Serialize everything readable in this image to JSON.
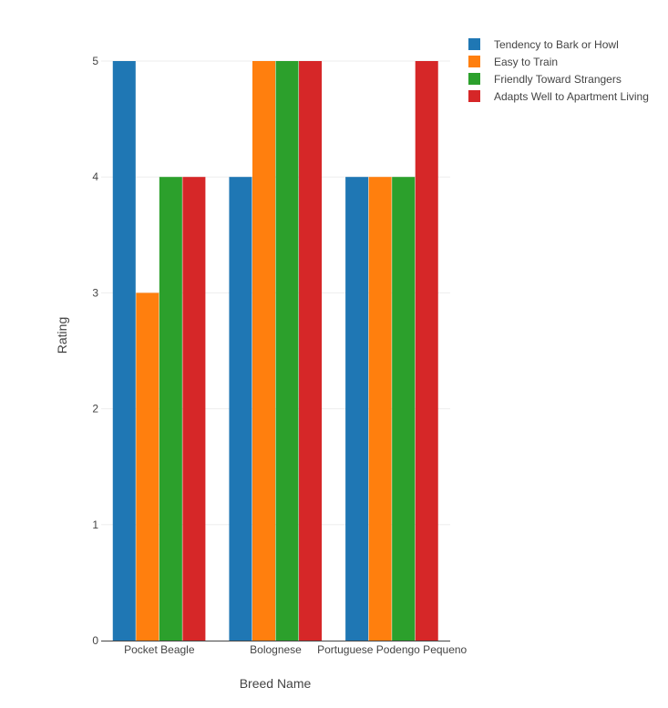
{
  "chart_data": {
    "type": "bar",
    "title": "",
    "xlabel": "Breed Name",
    "ylabel": "Rating",
    "ylim": [
      0,
      5
    ],
    "yticks": [
      0,
      1,
      2,
      3,
      4,
      5
    ],
    "categories": [
      "Pocket Beagle",
      "Bolognese",
      "Portuguese Podengo Pequeno"
    ],
    "series": [
      {
        "name": "Tendency to Bark or Howl",
        "color": "#1f77b4",
        "values": [
          5,
          4,
          4
        ]
      },
      {
        "name": "Easy to Train",
        "color": "#ff7f0e",
        "values": [
          3,
          5,
          4
        ]
      },
      {
        "name": "Friendly Toward Strangers",
        "color": "#2ca02c",
        "values": [
          4,
          5,
          4
        ]
      },
      {
        "name": "Adapts Well to Apartment Living",
        "color": "#d62728",
        "values": [
          4,
          5,
          5
        ]
      }
    ],
    "grid": true,
    "legend_position": "top-right"
  }
}
